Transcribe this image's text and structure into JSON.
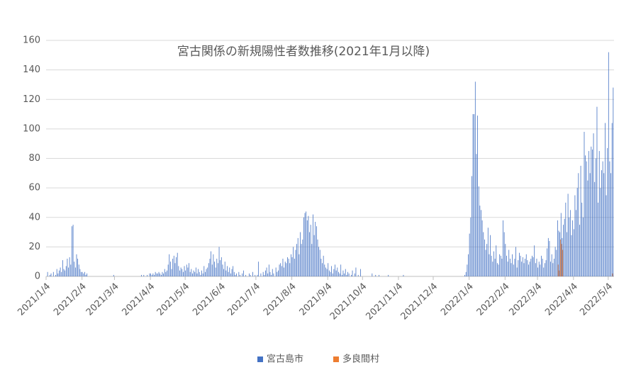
{
  "chart_data": {
    "type": "bar",
    "title": "宮古関係の新規陽性者数推移(2021年1月以降)",
    "categories": [
      "2021/1/4",
      null,
      null,
      null,
      null,
      null,
      null,
      null,
      null,
      null,
      null,
      null,
      null,
      null,
      null,
      null,
      null,
      null,
      null,
      null,
      null,
      null,
      null,
      null,
      null,
      null,
      null,
      null,
      null,
      null,
      null,
      "2021/2/4",
      null,
      null,
      null,
      null,
      null,
      null,
      null,
      null,
      null,
      null,
      null,
      null,
      null,
      null,
      null,
      null,
      null,
      null,
      null,
      null,
      null,
      null,
      null,
      null,
      null,
      null,
      null,
      "2021/3/4",
      null,
      null,
      null,
      null,
      null,
      null,
      null,
      null,
      null,
      null,
      null,
      null,
      null,
      null,
      null,
      null,
      null,
      null,
      null,
      null,
      null,
      null,
      null,
      null,
      null,
      null,
      null,
      null,
      null,
      null,
      "2021/4/4",
      null,
      null,
      null,
      null,
      null,
      null,
      null,
      null,
      null,
      null,
      null,
      null,
      null,
      null,
      null,
      null,
      null,
      null,
      null,
      null,
      null,
      null,
      null,
      null,
      null,
      null,
      null,
      null,
      null,
      "2021/5/4",
      null,
      null,
      null,
      null,
      null,
      null,
      null,
      null,
      null,
      null,
      null,
      null,
      null,
      null,
      null,
      null,
      null,
      null,
      null,
      null,
      null,
      null,
      null,
      null,
      null,
      null,
      null,
      null,
      null,
      null,
      "2021/6/4",
      null,
      null,
      null,
      null,
      null,
      null,
      null,
      null,
      null,
      null,
      null,
      null,
      null,
      null,
      null,
      null,
      null,
      null,
      null,
      null,
      null,
      null,
      null,
      null,
      null,
      null,
      null,
      null,
      null,
      "2021/7/4",
      null,
      null,
      null,
      null,
      null,
      null,
      null,
      null,
      null,
      null,
      null,
      null,
      null,
      null,
      null,
      null,
      null,
      null,
      null,
      null,
      null,
      null,
      null,
      null,
      null,
      null,
      null,
      null,
      null,
      null,
      "2021/8/4",
      null,
      null,
      null,
      null,
      null,
      null,
      null,
      null,
      null,
      null,
      null,
      null,
      null,
      null,
      null,
      null,
      null,
      null,
      null,
      null,
      null,
      null,
      null,
      null,
      null,
      null,
      null,
      null,
      null,
      null,
      "2021/9/4",
      null,
      null,
      null,
      null,
      null,
      null,
      null,
      null,
      null,
      null,
      null,
      null,
      null,
      null,
      null,
      null,
      null,
      null,
      null,
      null,
      null,
      null,
      null,
      null,
      null,
      null,
      null,
      null,
      null,
      "2021/10/4",
      null,
      null,
      null,
      null,
      null,
      null,
      null,
      null,
      null,
      null,
      null,
      null,
      null,
      null,
      null,
      null,
      null,
      null,
      null,
      null,
      null,
      null,
      null,
      null,
      null,
      null,
      null,
      null,
      null,
      null,
      "2021/11/4",
      null,
      null,
      null,
      null,
      null,
      null,
      null,
      null,
      null,
      null,
      null,
      null,
      null,
      null,
      null,
      null,
      null,
      null,
      null,
      null,
      null,
      null,
      null,
      null,
      null,
      null,
      null,
      null,
      null,
      "2021/12/4",
      null,
      null,
      null,
      null,
      null,
      null,
      null,
      null,
      null,
      null,
      null,
      null,
      null,
      null,
      null,
      null,
      null,
      null,
      null,
      null,
      null,
      null,
      null,
      null,
      null,
      null,
      null,
      null,
      null,
      null,
      "2022/1/4",
      null,
      null,
      null,
      null,
      null,
      null,
      null,
      null,
      null,
      null,
      null,
      null,
      null,
      null,
      null,
      null,
      null,
      null,
      null,
      null,
      null,
      null,
      null,
      null,
      null,
      null,
      null,
      null,
      null,
      null,
      "2022/2/4",
      null,
      null,
      null,
      null,
      null,
      null,
      null,
      null,
      null,
      null,
      null,
      null,
      null,
      null,
      null,
      null,
      null,
      null,
      null,
      null,
      null,
      null,
      null,
      null,
      null,
      null,
      null,
      "2022/3/4",
      null,
      null,
      null,
      null,
      null,
      null,
      null,
      null,
      null,
      null,
      null,
      null,
      null,
      null,
      null,
      null,
      null,
      null,
      null,
      null,
      null,
      null,
      null,
      null,
      null,
      null,
      null,
      null,
      null,
      null,
      "2022/4/4",
      null,
      null,
      null,
      null,
      null,
      null,
      null,
      null,
      null,
      null,
      null,
      null,
      null,
      null,
      null,
      null,
      null,
      null,
      null,
      null,
      null,
      null,
      null,
      null,
      null,
      null,
      null,
      null,
      null,
      "2022/5/4",
      null,
      null,
      null,
      null
    ],
    "series": [
      {
        "name": "宮古島市",
        "color": "#4472c4",
        "values": [
          0,
          3,
          0,
          1,
          2,
          0,
          3,
          0,
          1,
          5,
          2,
          4,
          6,
          3,
          11,
          5,
          4,
          7,
          12,
          6,
          13,
          8,
          34,
          35,
          10,
          6,
          15,
          12,
          8,
          5,
          3,
          3,
          2,
          3,
          1,
          2,
          0,
          0,
          0,
          0,
          0,
          0,
          0,
          0,
          0,
          0,
          0,
          0,
          0,
          0,
          0,
          0,
          0,
          0,
          0,
          0,
          0,
          0,
          1,
          0,
          0,
          0,
          0,
          0,
          0,
          0,
          0,
          0,
          0,
          0,
          0,
          0,
          0,
          0,
          0,
          0,
          0,
          0,
          0,
          0,
          0,
          0,
          1,
          0,
          1,
          0,
          0,
          1,
          0,
          2,
          2,
          1,
          2,
          1,
          3,
          2,
          2,
          3,
          2,
          1,
          3,
          2,
          5,
          3,
          4,
          8,
          15,
          10,
          5,
          12,
          14,
          9,
          13,
          16,
          7,
          4,
          6,
          5,
          3,
          7,
          4,
          8,
          6,
          9,
          3,
          5,
          2,
          4,
          3,
          6,
          2,
          5,
          3,
          1,
          4,
          2,
          7,
          3,
          5,
          6,
          9,
          12,
          17,
          8,
          15,
          10,
          6,
          12,
          9,
          20,
          11,
          13,
          8,
          5,
          10,
          4,
          7,
          3,
          6,
          2,
          5,
          7,
          3,
          1,
          2,
          0,
          3,
          1,
          0,
          2,
          4,
          0,
          1,
          0,
          0,
          2,
          1,
          0,
          3,
          0,
          1,
          0,
          1,
          10,
          0,
          2,
          0,
          3,
          1,
          4,
          6,
          2,
          8,
          3,
          1,
          5,
          2,
          0,
          6,
          3,
          4,
          8,
          9,
          7,
          12,
          6,
          10,
          9,
          13,
          12,
          9,
          15,
          13,
          20,
          12,
          18,
          22,
          26,
          15,
          30,
          22,
          25,
          40,
          43,
          44,
          38,
          41,
          30,
          35,
          22,
          42,
          28,
          37,
          34,
          25,
          20,
          18,
          12,
          9,
          14,
          8,
          6,
          5,
          9,
          4,
          3,
          7,
          2,
          5,
          8,
          4,
          6,
          3,
          2,
          8,
          1,
          4,
          2,
          5,
          1,
          3,
          2,
          0,
          1,
          4,
          0,
          2,
          6,
          0,
          1,
          0,
          5,
          0,
          0,
          0,
          0,
          0,
          0,
          0,
          0,
          0,
          2,
          0,
          0,
          1,
          0,
          0,
          1,
          0,
          0,
          0,
          0,
          0,
          0,
          0,
          1,
          0,
          0,
          0,
          0,
          0,
          0,
          0,
          0,
          0,
          0,
          0,
          0,
          1,
          0,
          0,
          0,
          0,
          0,
          0,
          0,
          0,
          0,
          0,
          0,
          0,
          0,
          0,
          0,
          0,
          0,
          0,
          0,
          0,
          0,
          0,
          0,
          0,
          0,
          0,
          0,
          0,
          0,
          0,
          0,
          0,
          0,
          0,
          0,
          0,
          0,
          0,
          0,
          0,
          0,
          0,
          0,
          0,
          0,
          0,
          0,
          0,
          0,
          0,
          0,
          0,
          1,
          3,
          8,
          15,
          29,
          40,
          68,
          110,
          110,
          132,
          83,
          109,
          61,
          48,
          45,
          38,
          30,
          25,
          18,
          22,
          33,
          15,
          28,
          14,
          10,
          17,
          12,
          21,
          9,
          8,
          15,
          14,
          12,
          38,
          30,
          22,
          14,
          10,
          18,
          12,
          9,
          15,
          8,
          12,
          20,
          6,
          11,
          16,
          14,
          10,
          13,
          9,
          12,
          15,
          11,
          8,
          10,
          12,
          14,
          13,
          21,
          9,
          12,
          6,
          10,
          8,
          14,
          12,
          6,
          9,
          11,
          19,
          26,
          24,
          10,
          15,
          9,
          12,
          20,
          18,
          38,
          31,
          30,
          43,
          26,
          35,
          39,
          50,
          30,
          56,
          40,
          45,
          28,
          38,
          32,
          55,
          45,
          60,
          70,
          35,
          75,
          50,
          40,
          98,
          82,
          78,
          65,
          85,
          70,
          88,
          86,
          97,
          64,
          80,
          115,
          50,
          85,
          60,
          72,
          78,
          70,
          104,
          55,
          87,
          152,
          78,
          70,
          104,
          128
        ]
      },
      {
        "name": "多良間村",
        "color": "#ed7d31",
        "values": [
          0,
          0,
          0,
          0,
          0,
          0,
          0,
          0,
          0,
          0,
          0,
          0,
          0,
          0,
          0,
          0,
          0,
          0,
          0,
          0,
          0,
          0,
          0,
          0,
          0,
          0,
          0,
          0,
          0,
          0,
          0,
          0,
          0,
          0,
          0,
          0,
          0,
          0,
          0,
          0,
          0,
          0,
          0,
          0,
          0,
          0,
          0,
          0,
          0,
          0,
          0,
          0,
          0,
          0,
          0,
          0,
          0,
          0,
          0,
          0,
          0,
          0,
          0,
          0,
          0,
          0,
          0,
          0,
          0,
          0,
          0,
          0,
          0,
          0,
          0,
          0,
          0,
          0,
          0,
          0,
          0,
          0,
          0,
          0,
          0,
          0,
          0,
          0,
          0,
          0,
          0,
          0,
          0,
          0,
          0,
          0,
          0,
          0,
          0,
          0,
          0,
          0,
          0,
          0,
          0,
          0,
          0,
          0,
          0,
          0,
          0,
          0,
          0,
          0,
          0,
          0,
          0,
          0,
          0,
          0,
          0,
          0,
          0,
          0,
          0,
          0,
          0,
          0,
          0,
          0,
          0,
          0,
          0,
          0,
          0,
          0,
          0,
          0,
          0,
          0,
          0,
          0,
          0,
          0,
          0,
          0,
          0,
          0,
          0,
          0,
          0,
          0,
          0,
          0,
          0,
          0,
          0,
          0,
          0,
          0,
          0,
          0,
          0,
          0,
          0,
          0,
          0,
          0,
          0,
          0,
          0,
          0,
          0,
          0,
          0,
          0,
          0,
          0,
          0,
          0,
          0,
          0,
          0,
          0,
          0,
          0,
          0,
          0,
          0,
          0,
          0,
          0,
          0,
          0,
          0,
          0,
          0,
          0,
          0,
          0,
          0,
          0,
          0,
          0,
          0,
          0,
          0,
          0,
          0,
          0,
          0,
          0,
          0,
          0,
          0,
          0,
          0,
          0,
          0,
          0,
          0,
          0,
          0,
          0,
          0,
          0,
          0,
          0,
          0,
          0,
          0,
          0,
          0,
          0,
          0,
          0,
          0,
          0,
          0,
          0,
          0,
          0,
          0,
          0,
          0,
          0,
          0,
          0,
          0,
          0,
          0,
          0,
          0,
          0,
          0,
          0,
          0,
          0,
          0,
          0,
          0,
          0,
          0,
          0,
          0,
          0,
          0,
          0,
          0,
          0,
          0,
          0,
          0,
          0,
          0,
          0,
          0,
          0,
          0,
          0,
          0,
          0,
          0,
          0,
          0,
          0,
          0,
          0,
          0,
          0,
          0,
          0,
          0,
          0,
          0,
          0,
          0,
          0,
          0,
          0,
          0,
          0,
          0,
          0,
          0,
          0,
          0,
          0,
          0,
          0,
          0,
          0,
          0,
          0,
          0,
          0,
          0,
          0,
          0,
          0,
          0,
          0,
          0,
          0,
          0,
          0,
          0,
          0,
          0,
          0,
          0,
          0,
          0,
          0,
          0,
          0,
          0,
          0,
          0,
          0,
          0,
          0,
          0,
          0,
          0,
          0,
          0,
          0,
          0,
          0,
          0,
          0,
          0,
          0,
          0,
          0,
          0,
          0,
          0,
          0,
          0,
          0,
          0,
          0,
          0,
          0,
          0,
          0,
          0,
          0,
          0,
          0,
          0,
          0,
          0,
          0,
          0,
          0,
          0,
          0,
          0,
          0,
          0,
          0,
          0,
          0,
          0,
          0,
          0,
          0,
          0,
          0,
          0,
          0,
          0,
          0,
          0,
          0,
          0,
          0,
          0,
          0,
          0,
          0,
          0,
          0,
          0,
          0,
          0,
          0,
          0,
          0,
          0,
          0,
          0,
          0,
          0,
          0,
          0,
          0,
          0,
          0,
          0,
          0,
          0,
          0,
          0,
          0,
          0,
          0,
          0,
          0,
          0,
          0,
          0,
          0,
          0,
          0,
          0,
          0,
          0,
          8,
          4,
          25,
          22,
          18,
          0,
          0,
          0,
          0,
          0,
          0,
          0,
          0,
          0,
          0,
          0,
          0,
          0,
          0,
          0,
          0,
          0,
          0,
          0,
          0,
          0,
          0,
          0,
          0,
          0,
          0,
          0,
          0,
          0,
          0,
          0,
          0,
          0,
          0,
          0,
          0,
          0,
          0,
          0,
          0,
          0,
          0,
          2,
          0
        ]
      }
    ],
    "ylim": [
      0,
      160
    ],
    "yticks": [
      0,
      20,
      40,
      60,
      80,
      100,
      120,
      140,
      160
    ],
    "grid": true,
    "legend": "bottom"
  }
}
